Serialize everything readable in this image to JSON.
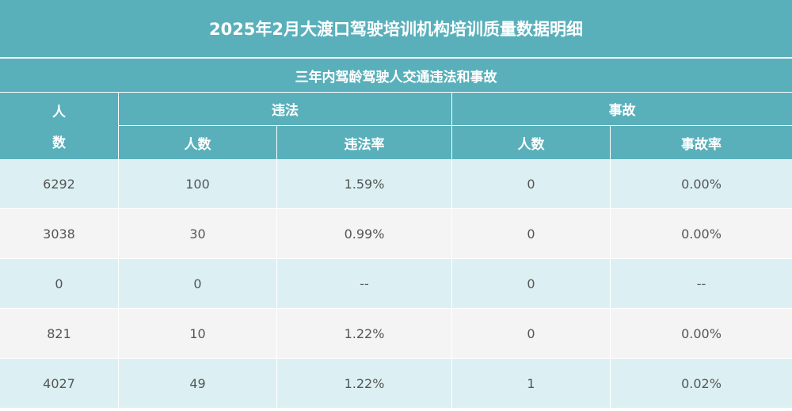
{
  "title": "2025年2月大渡口驾驶培训机构培训质量数据明细",
  "subtitle": "三年内驾龄驾驶人交通违法和事故",
  "headers": {
    "people_top": "人",
    "people_bottom": "数",
    "violation_group": "违法",
    "accident_group": "事故",
    "violation_count": "人数",
    "violation_rate": "违法率",
    "accident_count": "人数",
    "accident_rate": "事故率"
  },
  "rows": [
    {
      "total": "6292",
      "vio_count": "100",
      "vio_rate": "1.59%",
      "acc_count": "0",
      "acc_rate": "0.00%"
    },
    {
      "total": "3038",
      "vio_count": "30",
      "vio_rate": "0.99%",
      "acc_count": "0",
      "acc_rate": "0.00%"
    },
    {
      "total": "0",
      "vio_count": "0",
      "vio_rate": "--",
      "acc_count": "0",
      "acc_rate": "--"
    },
    {
      "total": "821",
      "vio_count": "10",
      "vio_rate": "1.22%",
      "acc_count": "0",
      "acc_rate": "0.00%"
    },
    {
      "total": "4027",
      "vio_count": "49",
      "vio_rate": "1.22%",
      "acc_count": "1",
      "acc_rate": "0.02%"
    }
  ],
  "colors": {
    "header_bg": "#59b0bb",
    "row_alt_1": "#dcf0f3",
    "row_alt_2": "#f4f4f4",
    "text": "#555555"
  }
}
